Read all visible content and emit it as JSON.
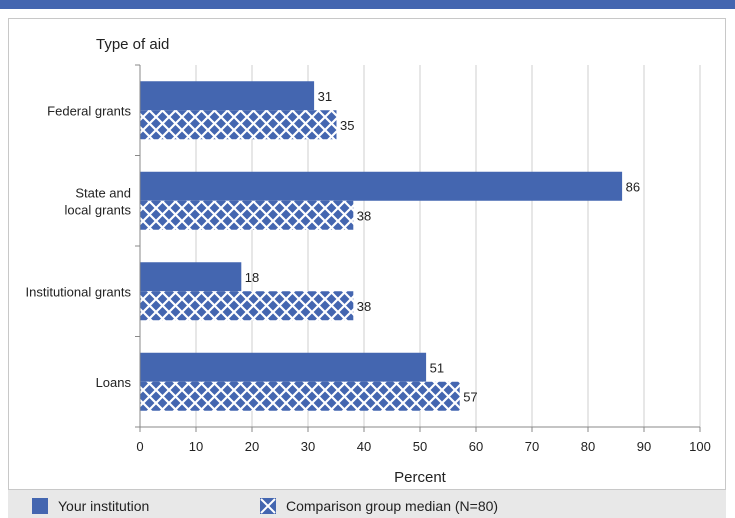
{
  "chart_data": {
    "type": "bar",
    "orientation": "horizontal",
    "title": "Type of aid",
    "xlabel": "Percent",
    "ylabel": "",
    "xlim": [
      0,
      100
    ],
    "xticks": [
      "0",
      "10",
      "20",
      "30",
      "40",
      "50",
      "60",
      "70",
      "80",
      "90",
      "100"
    ],
    "grid": true,
    "legend_position": "bottom",
    "categories": [
      [
        "Federal grants"
      ],
      [
        "State and",
        "local grants"
      ],
      [
        "Institutional grants"
      ],
      [
        "Loans"
      ]
    ],
    "series": [
      {
        "name": "Your institution",
        "values": [
          31,
          86,
          18,
          51
        ],
        "color": "#4466b0",
        "pattern": "solid"
      },
      {
        "name": "Comparison group median (N=80)",
        "values": [
          35,
          38,
          38,
          57
        ],
        "color": "#4466b0",
        "pattern": "crosshatch"
      }
    ]
  }
}
